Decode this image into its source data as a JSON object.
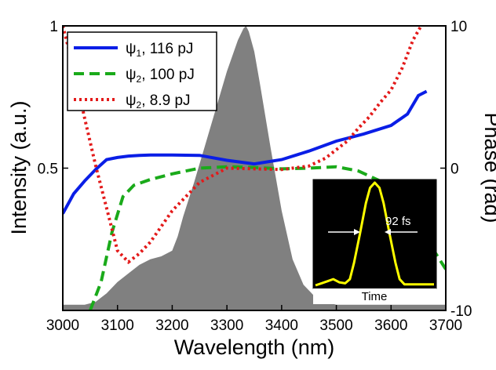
{
  "chart_data": {
    "type": "line",
    "xlabel": "Wavelength (nm)",
    "ylabel_left": "Intensity (a.u.)",
    "ylabel_right": "Phase (rad)",
    "xlim": [
      3000,
      3700
    ],
    "ylim_left": [
      0,
      1
    ],
    "ylim_right": [
      -10,
      10
    ],
    "grid": false,
    "legend_position": "top-left",
    "x_ticks": [
      "3000",
      "3100",
      "3200",
      "3300",
      "3400",
      "3500",
      "3600",
      "3700"
    ],
    "y_left_ticks": [
      "0.5",
      "1"
    ],
    "y_right_ticks": [
      "-10",
      "0",
      "10"
    ],
    "legend": [
      {
        "symbol": "ψ",
        "sub": "1",
        "text": ", 116 pJ"
      },
      {
        "symbol": "ψ",
        "sub": "2",
        "text": ", 100 pJ"
      },
      {
        "symbol": "ψ",
        "sub": "2",
        "text": ", 8.9 pJ"
      }
    ],
    "spectrum": {
      "axis": "left",
      "color": "#808080",
      "x": [
        3000,
        3040,
        3060,
        3080,
        3100,
        3120,
        3140,
        3160,
        3180,
        3200,
        3210,
        3220,
        3240,
        3260,
        3280,
        3300,
        3320,
        3330,
        3335,
        3340,
        3350,
        3360,
        3380,
        3400,
        3420,
        3440,
        3460,
        3480,
        3500,
        3550,
        3600,
        3650,
        3700
      ],
      "y": [
        0.02,
        0.02,
        0.03,
        0.06,
        0.1,
        0.13,
        0.16,
        0.18,
        0.19,
        0.21,
        0.26,
        0.33,
        0.45,
        0.58,
        0.71,
        0.84,
        0.95,
        0.99,
        1.0,
        0.98,
        0.91,
        0.8,
        0.57,
        0.35,
        0.18,
        0.09,
        0.05,
        0.03,
        0.02,
        0.02,
        0.02,
        0.02,
        0.02
      ]
    },
    "series": [
      {
        "name": "ψ1, 116 pJ",
        "axis": "right",
        "color": "#0a1ee6",
        "style": "solid",
        "x": [
          3000,
          3020,
          3040,
          3060,
          3080,
          3100,
          3120,
          3140,
          3160,
          3200,
          3250,
          3300,
          3350,
          3400,
          3450,
          3500,
          3550,
          3600,
          3630,
          3650,
          3665
        ],
        "y": [
          -3.2,
          -1.8,
          -0.9,
          -0.1,
          0.6,
          0.75,
          0.85,
          0.9,
          0.92,
          0.92,
          0.9,
          0.55,
          0.3,
          0.6,
          1.2,
          1.9,
          2.4,
          3.0,
          3.8,
          5.1,
          5.4
        ]
      },
      {
        "name": "ψ2, 100 pJ",
        "axis": "right",
        "color": "#1aaa1a",
        "style": "dashed",
        "x": [
          3050,
          3070,
          3090,
          3110,
          3130,
          3160,
          3200,
          3250,
          3300,
          3350,
          3400,
          3450,
          3500,
          3540,
          3580,
          3620,
          3650,
          3670,
          3700
        ],
        "y": [
          -10,
          -8.0,
          -4.5,
          -2.0,
          -1.2,
          -0.8,
          -0.4,
          0.0,
          0.1,
          0.05,
          -0.05,
          0.0,
          0.1,
          -0.2,
          -0.9,
          -2.4,
          -4.0,
          -5.3,
          -7.1
        ]
      },
      {
        "name": "ψ2, 8.9 pJ",
        "axis": "right",
        "color": "#e31a1a",
        "style": "dotted",
        "x": [
          3000,
          3020,
          3040,
          3060,
          3080,
          3100,
          3120,
          3140,
          3160,
          3180,
          3200,
          3250,
          3300,
          3350,
          3400,
          3450,
          3480,
          3500,
          3520,
          3540,
          3560,
          3580,
          3600,
          3620,
          3640,
          3655
        ],
        "y": [
          10,
          7.0,
          3.5,
          0.2,
          -2.8,
          -5.8,
          -6.6,
          -6.0,
          -5.2,
          -4.1,
          -3.0,
          -1.0,
          0.0,
          -0.05,
          -0.1,
          0.15,
          0.7,
          1.3,
          1.9,
          2.8,
          3.6,
          4.6,
          5.5,
          7.0,
          9.0,
          10.0
        ]
      }
    ],
    "inset": {
      "label_fwhm": "92 fs",
      "xlabel": "Time",
      "line_color": "#ffff00",
      "background": "#000000",
      "t": [
        -10,
        -9,
        -8,
        -7,
        -6,
        -5,
        -4.2,
        -3.5,
        -2.5,
        -1.5,
        -0.8,
        0,
        0.8,
        1.5,
        2.5,
        3.5,
        4.2,
        5,
        6,
        7,
        8,
        9,
        10
      ],
      "y": [
        0.0,
        0.02,
        0.04,
        0.06,
        0.03,
        0.02,
        0.06,
        0.22,
        0.5,
        0.8,
        0.95,
        1.0,
        0.95,
        0.8,
        0.5,
        0.22,
        0.06,
        0.01,
        0.01,
        0.01,
        0.01,
        0.01,
        0.01
      ]
    }
  }
}
